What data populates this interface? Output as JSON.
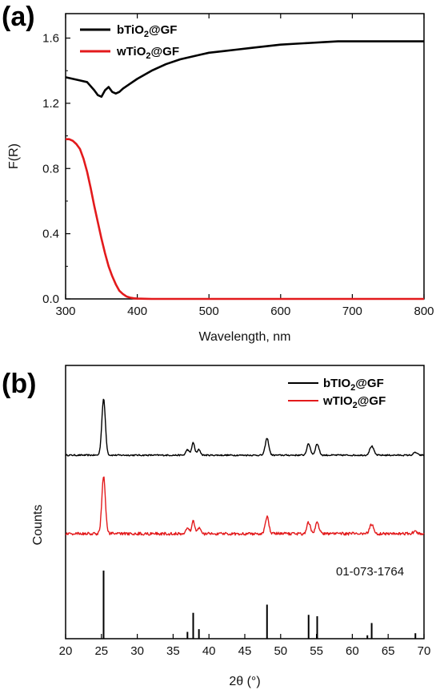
{
  "chart_data": [
    {
      "panel": "(a)",
      "type": "line",
      "xlabel": "Wavelength, nm",
      "ylabel": "F(R)",
      "xlim": [
        300,
        800
      ],
      "ylim": [
        0,
        1.75
      ],
      "xticks": [
        "300",
        "400",
        "500",
        "600",
        "700",
        "800"
      ],
      "yticks": [
        "0.0",
        "0.4",
        "0.8",
        "1.2",
        "1.6"
      ],
      "legend_position": "top-left",
      "series": [
        {
          "name": "bTiO2@GF",
          "legend_main": "bTiO",
          "legend_sub": "2",
          "legend_tail": "@GF",
          "color": "#000000",
          "x": [
            300,
            310,
            320,
            330,
            340,
            345,
            350,
            355,
            360,
            365,
            370,
            375,
            380,
            390,
            400,
            420,
            440,
            460,
            480,
            500,
            520,
            540,
            560,
            580,
            600,
            620,
            640,
            660,
            680,
            700,
            720,
            740,
            760,
            780,
            800
          ],
          "y": [
            1.36,
            1.35,
            1.34,
            1.33,
            1.28,
            1.25,
            1.24,
            1.28,
            1.3,
            1.27,
            1.26,
            1.27,
            1.29,
            1.32,
            1.35,
            1.4,
            1.44,
            1.47,
            1.49,
            1.51,
            1.52,
            1.53,
            1.54,
            1.55,
            1.56,
            1.565,
            1.57,
            1.575,
            1.58,
            1.58,
            1.58,
            1.58,
            1.58,
            1.58,
            1.58
          ]
        },
        {
          "name": "wTiO2@GF",
          "legend_main": "wTiO",
          "legend_sub": "2",
          "legend_tail": "@GF",
          "color": "#e31a1c",
          "x": [
            300,
            305,
            310,
            315,
            320,
            325,
            330,
            335,
            340,
            345,
            350,
            355,
            360,
            365,
            370,
            375,
            380,
            385,
            390,
            395,
            400,
            410,
            420,
            450,
            500,
            600,
            700,
            800
          ],
          "y": [
            0.98,
            0.98,
            0.97,
            0.95,
            0.92,
            0.86,
            0.78,
            0.68,
            0.57,
            0.47,
            0.37,
            0.28,
            0.2,
            0.14,
            0.09,
            0.05,
            0.03,
            0.015,
            0.008,
            0.004,
            0.002,
            0.001,
            0.0,
            0.0,
            0.0,
            0.0,
            0.0,
            0.0
          ]
        }
      ]
    },
    {
      "panel": "(b)",
      "type": "line",
      "xlabel": "2θ (°)",
      "ylabel": "Counts",
      "xlim": [
        20,
        70
      ],
      "xticks": [
        "20",
        "25",
        "30",
        "35",
        "40",
        "45",
        "50",
        "55",
        "60",
        "65",
        "70"
      ],
      "legend_position": "top-right",
      "reference_label": "01-073-1764",
      "peaks": [
        {
          "pos": 25.3,
          "h": 1.0,
          "w": 0.35
        },
        {
          "pos": 37.0,
          "h": 0.1,
          "w": 0.3
        },
        {
          "pos": 37.8,
          "h": 0.22,
          "w": 0.3
        },
        {
          "pos": 38.6,
          "h": 0.1,
          "w": 0.3
        },
        {
          "pos": 48.1,
          "h": 0.3,
          "w": 0.35
        },
        {
          "pos": 53.9,
          "h": 0.2,
          "w": 0.35
        },
        {
          "pos": 55.1,
          "h": 0.2,
          "w": 0.35
        },
        {
          "pos": 62.7,
          "h": 0.16,
          "w": 0.4
        },
        {
          "pos": 68.8,
          "h": 0.05,
          "w": 0.35
        }
      ],
      "series": [
        {
          "name": "bTIO2@GF",
          "legend_main": "bTIO",
          "legend_sub": "2",
          "legend_tail": "@GF",
          "color": "#000000",
          "offset": 2.0
        },
        {
          "name": "wTIO2@GF",
          "legend_main": "wTIO",
          "legend_sub": "2",
          "legend_tail": "@GF",
          "color": "#e31a1c",
          "offset": 1.0
        }
      ],
      "reference_sticks": [
        {
          "x": 25.3,
          "h": 1.0
        },
        {
          "x": 37.0,
          "h": 0.1
        },
        {
          "x": 37.8,
          "h": 0.38
        },
        {
          "x": 38.6,
          "h": 0.14
        },
        {
          "x": 48.1,
          "h": 0.5
        },
        {
          "x": 53.9,
          "h": 0.35
        },
        {
          "x": 55.1,
          "h": 0.33
        },
        {
          "x": 62.1,
          "h": 0.05
        },
        {
          "x": 62.7,
          "h": 0.23
        },
        {
          "x": 68.8,
          "h": 0.08
        }
      ]
    }
  ]
}
